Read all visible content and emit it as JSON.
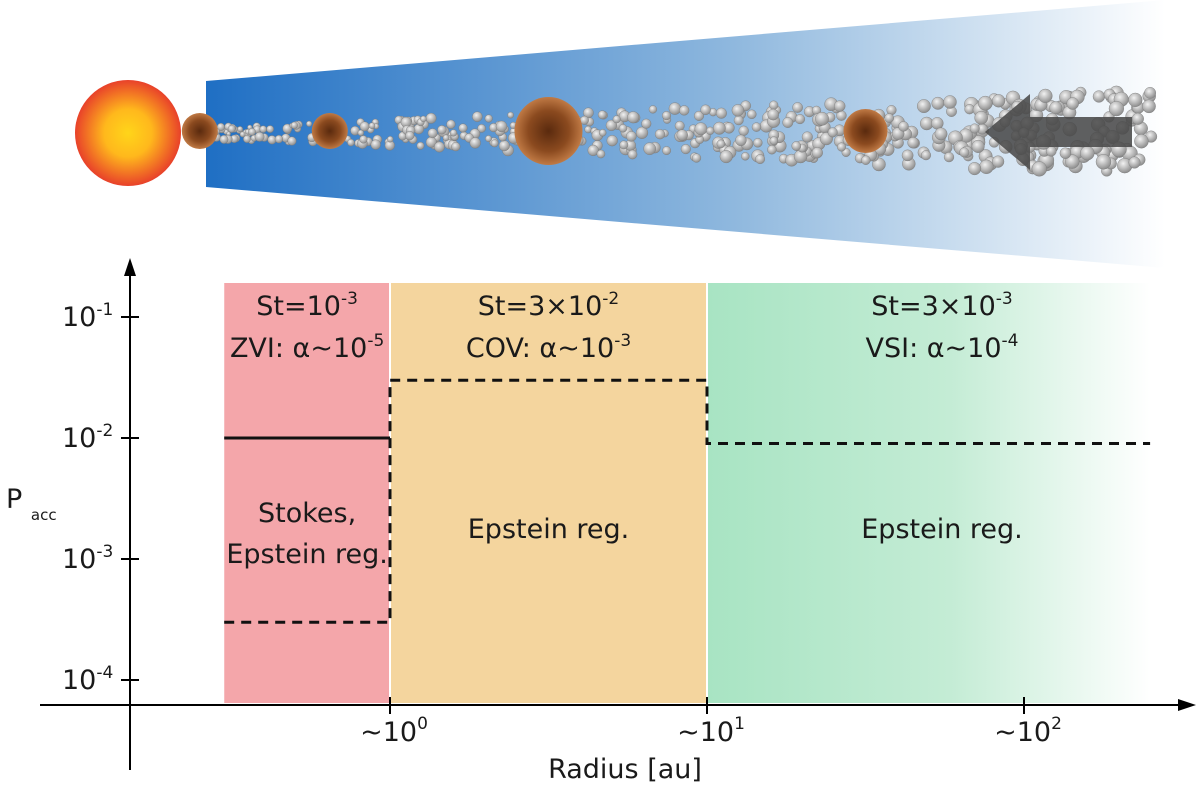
{
  "chart_data": {
    "type": "step",
    "title": "",
    "xlabel": "Radius [au]",
    "ylabel": "P",
    "ylabel_sub": "acc",
    "x_scale": "log",
    "y_scale": "log",
    "x_ticks": [
      {
        "base": "~10",
        "exp": "0",
        "value": 1
      },
      {
        "base": "~10",
        "exp": "1",
        "value": 10
      },
      {
        "base": "~10",
        "exp": "2",
        "value": 100
      }
    ],
    "y_ticks": [
      {
        "base": "10",
        "exp": "-1",
        "value": 0.1
      },
      {
        "base": "10",
        "exp": "-2",
        "value": 0.01
      },
      {
        "base": "10",
        "exp": "-3",
        "value": 0.001
      },
      {
        "base": "10",
        "exp": "-4",
        "value": 0.0001
      }
    ],
    "regions": [
      {
        "name": "ZVI region",
        "x_range": [
          0.3,
          1
        ],
        "color": "#f4a6aa",
        "line1": {
          "pre": "St=10",
          "exp": "-3",
          "post": ""
        },
        "line2": {
          "pre": "ZVI: α~10",
          "exp": "-5",
          "post": ""
        },
        "regime": [
          "Stokes,",
          "Epstein reg."
        ]
      },
      {
        "name": "COV region",
        "x_range": [
          1,
          10
        ],
        "color": "#f4d59e",
        "line1": {
          "pre": "St=3×10",
          "exp": "-2",
          "post": ""
        },
        "line2": {
          "pre": "COV: α~10",
          "exp": "-3",
          "post": ""
        },
        "regime": [
          "Epstein reg."
        ]
      },
      {
        "name": "VSI region",
        "x_range": [
          10,
          250
        ],
        "color": "#a8e4c3",
        "line1": {
          "pre": "St=3×10",
          "exp": "-3",
          "post": ""
        },
        "line2": {
          "pre": "VSI: α~10",
          "exp": "-4",
          "post": ""
        },
        "regime": [
          "Epstein reg."
        ]
      }
    ],
    "series": [
      {
        "name": "Stokes regime (solid)",
        "style": "solid",
        "points": [
          [
            0.3,
            0.01
          ],
          [
            1,
            0.01
          ]
        ]
      },
      {
        "name": "Epstein regime (dashed)",
        "style": "dashed",
        "points": [
          [
            0.3,
            0.0003
          ],
          [
            1,
            0.0003
          ],
          [
            1,
            0.03
          ],
          [
            10,
            0.03
          ],
          [
            10,
            0.009
          ],
          [
            250,
            0.009
          ]
        ]
      }
    ]
  },
  "disk": {
    "star_color_center": "#ffd51a",
    "star_color_edge": "#e8412a",
    "disk_color_inner": "#1f6fc4",
    "disk_color_outer": "#ffffff",
    "planetesimal_color": "#8b4a1f",
    "pebble_color": "#b8b8b8",
    "arrow_color": "#4a4a4a",
    "planetesimals_log_r": [
      -0.6,
      -0.19,
      0.5,
      1.5
    ]
  }
}
